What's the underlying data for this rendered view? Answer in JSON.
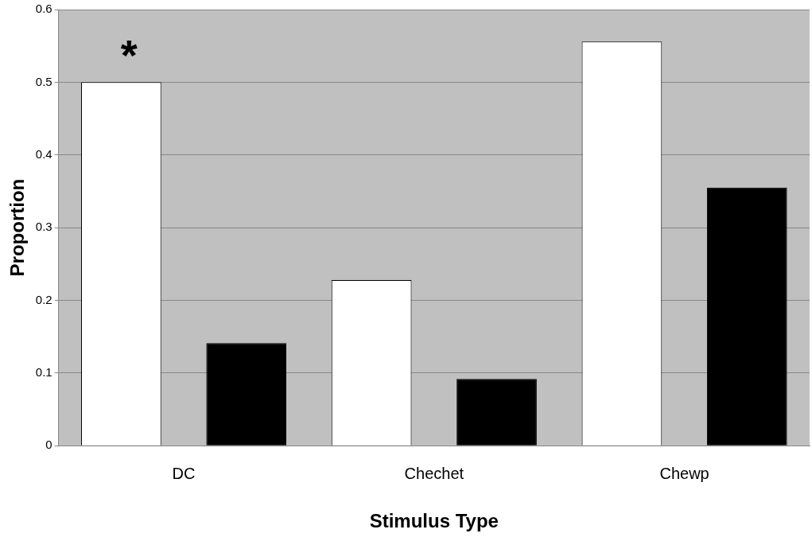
{
  "chart_data": {
    "type": "bar",
    "xlabel": "Stimulus Type",
    "ylabel": "Proportion",
    "categories": [
      "DC",
      "Chechet",
      "Chewp"
    ],
    "series": [
      {
        "color": "#ffffff",
        "values": [
          0.5,
          0.228,
          0.556
        ]
      },
      {
        "color": "#000000",
        "values": [
          0.141,
          0.092,
          0.355
        ]
      }
    ],
    "ylim": [
      0,
      0.6
    ],
    "yticks": [
      0,
      0.1,
      0.2,
      0.3,
      0.4,
      0.5,
      0.6
    ],
    "grid": "y",
    "legend": false,
    "annotations": [
      "*"
    ]
  }
}
